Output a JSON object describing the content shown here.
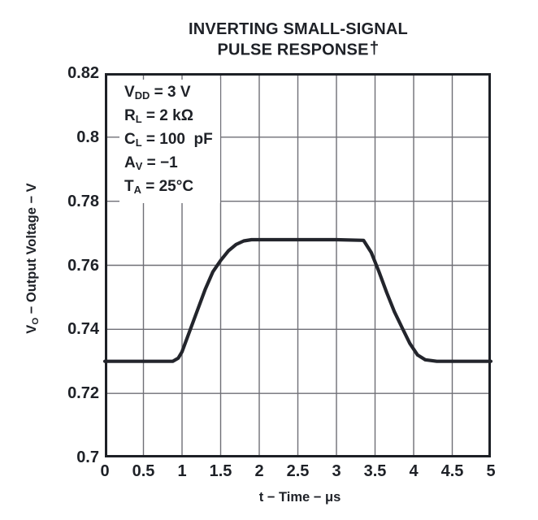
{
  "title": {
    "line1": "INVERTING SMALL-SIGNAL",
    "line2": "PULSE RESPONSE",
    "dagger": "†"
  },
  "annotation": {
    "lines": [
      {
        "base": "V",
        "sub": "DD",
        "rest": " = 3 V"
      },
      {
        "base": "R",
        "sub": "L",
        "rest": " = 2 kΩ"
      },
      {
        "base": "C",
        "sub": "L",
        "rest": " = 100  pF"
      },
      {
        "base": "A",
        "sub": "V",
        "rest": " = −1"
      },
      {
        "base": "T",
        "sub": "A",
        "rest": " = 25°C"
      }
    ]
  },
  "axes": {
    "x": {
      "label": "t − Time − μs",
      "ticks": [
        "0",
        "0.5",
        "1",
        "1.5",
        "2",
        "2.5",
        "3",
        "3.5",
        "4",
        "4.5",
        "5"
      ]
    },
    "y": {
      "label_base": "V",
      "label_sub": "O",
      "label_rest": " − Output Voltage − V",
      "ticks": [
        "0.82",
        "0.8",
        "0.78",
        "0.76",
        "0.74",
        "0.72",
        "0.7"
      ]
    }
  },
  "colors": {
    "ink": "#1e2127",
    "grid": "#6f6f76",
    "frame": "#1d2026",
    "curve": "#23252c",
    "background": "#ffffff"
  },
  "chart_data": {
    "type": "line",
    "title": "INVERTING SMALL-SIGNAL PULSE RESPONSE†",
    "xlabel": "t − Time − μs",
    "ylabel": "VO − Output Voltage − V",
    "xlim": [
      0,
      5
    ],
    "ylim": [
      0.7,
      0.82
    ],
    "xticks": [
      0,
      0.5,
      1,
      1.5,
      2,
      2.5,
      3,
      3.5,
      4,
      4.5,
      5
    ],
    "yticks": [
      0.7,
      0.72,
      0.74,
      0.76,
      0.78,
      0.8,
      0.82
    ],
    "grid": true,
    "legend": "none",
    "annotations": [
      "VDD = 3 V",
      "RL = 2 kΩ",
      "CL = 100 pF",
      "AV = −1",
      "TA = 25°C"
    ],
    "series": [
      {
        "name": "VO output pulse response",
        "points": [
          [
            0.0,
            0.73
          ],
          [
            0.88,
            0.73
          ],
          [
            0.95,
            0.731
          ],
          [
            1.0,
            0.733
          ],
          [
            1.1,
            0.7395
          ],
          [
            1.2,
            0.746
          ],
          [
            1.3,
            0.7525
          ],
          [
            1.4,
            0.758
          ],
          [
            1.5,
            0.7615
          ],
          [
            1.6,
            0.7645
          ],
          [
            1.7,
            0.7665
          ],
          [
            1.8,
            0.7676
          ],
          [
            1.9,
            0.768
          ],
          [
            2.2,
            0.768
          ],
          [
            2.6,
            0.768
          ],
          [
            3.0,
            0.768
          ],
          [
            3.35,
            0.7678
          ],
          [
            3.45,
            0.764
          ],
          [
            3.55,
            0.758
          ],
          [
            3.65,
            0.7515
          ],
          [
            3.75,
            0.7455
          ],
          [
            3.85,
            0.7405
          ],
          [
            3.95,
            0.7356
          ],
          [
            4.05,
            0.732
          ],
          [
            4.15,
            0.7305
          ],
          [
            4.3,
            0.73
          ],
          [
            5.0,
            0.73
          ]
        ]
      }
    ]
  }
}
